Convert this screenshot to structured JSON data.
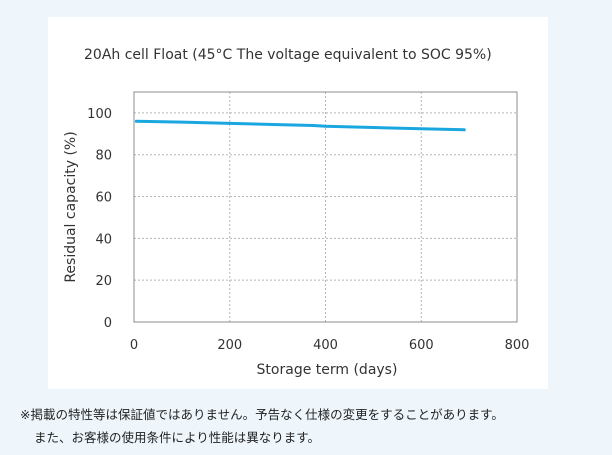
{
  "chart_data": {
    "type": "line",
    "title": "20Ah cell Float (45°C The voltage equivalent to SOC 95%)",
    "xlabel": "Storage term (days)",
    "ylabel": "Residual capacity (%)",
    "xlim": [
      0,
      800
    ],
    "ylim": [
      0,
      110
    ],
    "xticks": [
      0,
      200,
      400,
      600,
      800
    ],
    "yticks": [
      0,
      20,
      40,
      60,
      80,
      100
    ],
    "grid": true,
    "line_color": "#1aa7e0",
    "series": [
      {
        "x": [
          5,
          100,
          200,
          300,
          375,
          400,
          500,
          600,
          690
        ],
        "values": [
          96.0,
          95.6,
          95.0,
          94.4,
          94.0,
          93.6,
          93.0,
          92.4,
          91.9
        ]
      }
    ]
  },
  "note": {
    "line1": "※掲載の特性等は保証値ではありません。予告なく仕様の変更をすることがあります。",
    "line2": "また、お客様の使用条件により性能は異なります。"
  }
}
